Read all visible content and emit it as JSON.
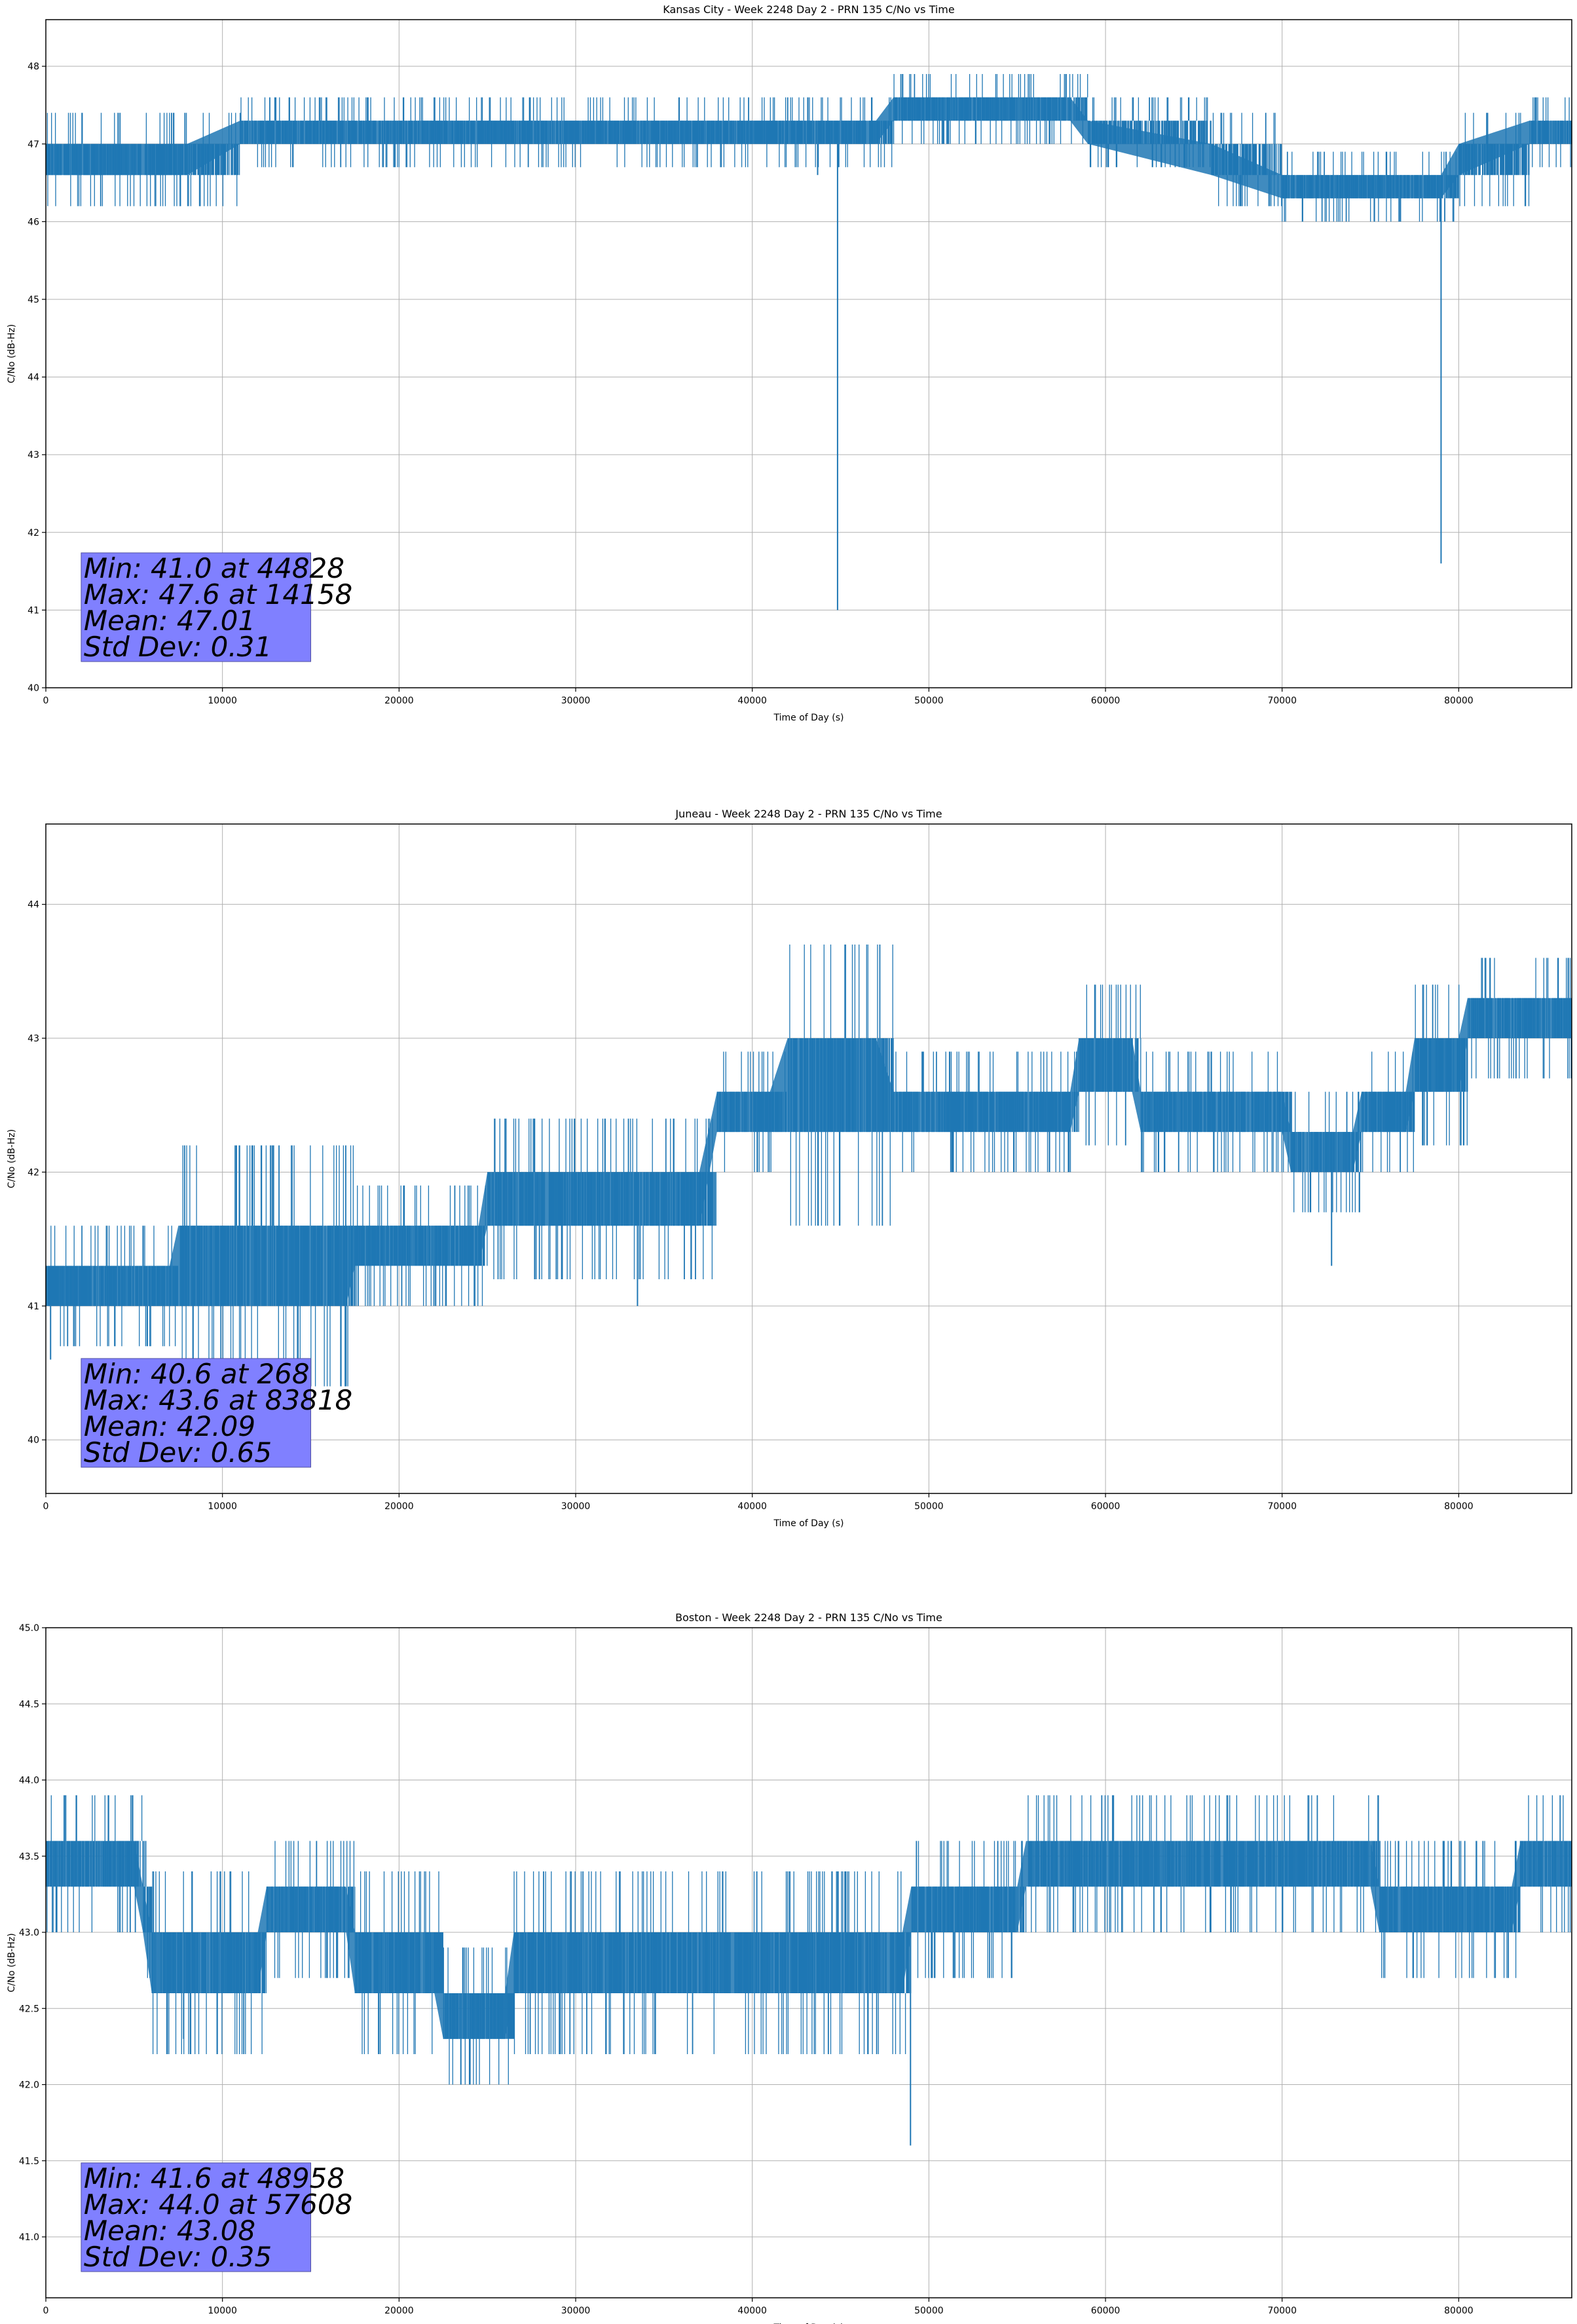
{
  "figure": {
    "background": "#ffffff",
    "line_color": "#1f77b4",
    "stats_box_color": "#8080ff"
  },
  "chart_data": [
    {
      "type": "line",
      "title": "Kansas City - Week 2248 Day 2 - PRN 135 C/No vs Time",
      "xlabel": "Time of Day (s)",
      "ylabel": "C/No (dB-Hz)",
      "xlim": [
        0,
        86400
      ],
      "ylim": [
        40,
        48.6
      ],
      "xticks": [
        0,
        10000,
        20000,
        30000,
        40000,
        50000,
        60000,
        70000,
        80000
      ],
      "yticks": [
        40,
        41,
        42,
        43,
        44,
        45,
        46,
        47,
        48
      ],
      "grid": true,
      "series": [
        {
          "values_description_free": true,
          "band": [
            {
              "x": 0,
              "low": 46.6,
              "high": 47.0
            },
            {
              "x": 8000,
              "low": 46.6,
              "high": 47.0
            },
            {
              "x": 11000,
              "low": 47.0,
              "high": 47.3
            },
            {
              "x": 47000,
              "low": 47.0,
              "high": 47.3
            },
            {
              "x": 48000,
              "low": 47.3,
              "high": 47.6
            },
            {
              "x": 58000,
              "low": 47.3,
              "high": 47.6
            },
            {
              "x": 59000,
              "low": 47.0,
              "high": 47.3
            },
            {
              "x": 66000,
              "low": 46.6,
              "high": 47.0
            },
            {
              "x": 70000,
              "low": 46.3,
              "high": 46.6
            },
            {
              "x": 79000,
              "low": 46.3,
              "high": 46.6
            },
            {
              "x": 80000,
              "low": 46.6,
              "high": 47.0
            },
            {
              "x": 84000,
              "low": 47.0,
              "high": 47.3
            },
            {
              "x": 86400,
              "low": 47.0,
              "high": 47.3
            }
          ],
          "spikes": [
            {
              "x": 44828,
              "y": 41.0
            },
            {
              "x": 79000,
              "y": 41.6
            },
            {
              "x": 43700,
              "y": 46.6
            }
          ]
        }
      ],
      "stats": [
        "Min: 41.0 at 44828",
        "Max: 47.6 at 14158",
        "Mean: 47.01",
        "Std Dev: 0.31"
      ]
    },
    {
      "type": "line",
      "title": "Juneau - Week 2248 Day 2 - PRN 135 C/No vs Time",
      "xlabel": "Time of Day (s)",
      "ylabel": "C/No (dB-Hz)",
      "xlim": [
        0,
        86400
      ],
      "ylim": [
        39.6,
        44.6
      ],
      "xticks": [
        0,
        10000,
        20000,
        30000,
        40000,
        50000,
        60000,
        70000,
        80000
      ],
      "yticks": [
        40,
        41,
        42,
        43,
        44
      ],
      "grid": true,
      "series": [
        {
          "band": [
            {
              "x": 0,
              "low": 41.0,
              "high": 41.3
            },
            {
              "x": 7000,
              "low": 41.0,
              "high": 41.3
            },
            {
              "x": 7500,
              "low": 41.0,
              "high": 41.6
            },
            {
              "x": 17000,
              "low": 41.0,
              "high": 41.6
            },
            {
              "x": 17500,
              "low": 41.3,
              "high": 41.6
            },
            {
              "x": 24500,
              "low": 41.3,
              "high": 41.6
            },
            {
              "x": 25000,
              "low": 41.6,
              "high": 42.0
            },
            {
              "x": 37000,
              "low": 41.6,
              "high": 42.0
            },
            {
              "x": 38000,
              "low": 42.3,
              "high": 42.6
            },
            {
              "x": 41000,
              "low": 42.3,
              "high": 42.6
            },
            {
              "x": 42000,
              "low": 42.3,
              "high": 43.0
            },
            {
              "x": 47000,
              "low": 42.3,
              "high": 43.0
            },
            {
              "x": 48000,
              "low": 42.3,
              "high": 42.6
            },
            {
              "x": 58000,
              "low": 42.3,
              "high": 42.6
            },
            {
              "x": 58500,
              "low": 42.6,
              "high": 43.0
            },
            {
              "x": 61500,
              "low": 42.6,
              "high": 43.0
            },
            {
              "x": 62000,
              "low": 42.3,
              "high": 42.6
            },
            {
              "x": 70000,
              "low": 42.3,
              "high": 42.6
            },
            {
              "x": 70500,
              "low": 42.0,
              "high": 42.3
            },
            {
              "x": 74000,
              "low": 42.0,
              "high": 42.3
            },
            {
              "x": 74500,
              "low": 42.3,
              "high": 42.6
            },
            {
              "x": 77000,
              "low": 42.3,
              "high": 42.6
            },
            {
              "x": 77500,
              "low": 42.6,
              "high": 43.0
            },
            {
              "x": 80000,
              "low": 42.6,
              "high": 43.0
            },
            {
              "x": 80500,
              "low": 43.0,
              "high": 43.3
            },
            {
              "x": 86400,
              "low": 43.0,
              "high": 43.3
            }
          ],
          "spikes": [
            {
              "x": 268,
              "y": 40.6
            },
            {
              "x": 72800,
              "y": 41.3
            },
            {
              "x": 33500,
              "y": 41.0
            }
          ]
        }
      ],
      "stats": [
        "Min: 40.6 at 268",
        "Max: 43.6 at 83818",
        "Mean: 42.09",
        "Std Dev: 0.65"
      ]
    },
    {
      "type": "line",
      "title": "Boston - Week 2248 Day 2 - PRN 135 C/No vs Time",
      "xlabel": "Time of Day (s)",
      "ylabel": "C/No (dB-Hz)",
      "xlim": [
        0,
        86400
      ],
      "ylim": [
        40.6,
        45.0
      ],
      "xticks": [
        0,
        10000,
        20000,
        30000,
        40000,
        50000,
        60000,
        70000,
        80000
      ],
      "yticks": [
        41.0,
        41.5,
        42.0,
        42.5,
        43.0,
        43.5,
        44.0,
        44.5,
        45.0
      ],
      "grid": true,
      "series": [
        {
          "band": [
            {
              "x": 0,
              "low": 43.3,
              "high": 43.6
            },
            {
              "x": 5000,
              "low": 43.3,
              "high": 43.6
            },
            {
              "x": 5500,
              "low": 43.0,
              "high": 43.3
            },
            {
              "x": 6000,
              "low": 42.6,
              "high": 43.0
            },
            {
              "x": 12000,
              "low": 42.6,
              "high": 43.0
            },
            {
              "x": 12500,
              "low": 43.0,
              "high": 43.3
            },
            {
              "x": 17000,
              "low": 43.0,
              "high": 43.3
            },
            {
              "x": 17500,
              "low": 42.6,
              "high": 43.0
            },
            {
              "x": 22000,
              "low": 42.6,
              "high": 43.0
            },
            {
              "x": 22500,
              "low": 42.3,
              "high": 42.6
            },
            {
              "x": 26000,
              "low": 42.3,
              "high": 42.6
            },
            {
              "x": 26500,
              "low": 42.6,
              "high": 43.0
            },
            {
              "x": 48500,
              "low": 42.6,
              "high": 43.0
            },
            {
              "x": 49000,
              "low": 43.0,
              "high": 43.3
            },
            {
              "x": 55000,
              "low": 43.0,
              "high": 43.3
            },
            {
              "x": 55500,
              "low": 43.3,
              "high": 43.6
            },
            {
              "x": 75000,
              "low": 43.3,
              "high": 43.6
            },
            {
              "x": 75500,
              "low": 43.0,
              "high": 43.3
            },
            {
              "x": 83000,
              "low": 43.0,
              "high": 43.3
            },
            {
              "x": 83500,
              "low": 43.3,
              "high": 43.6
            },
            {
              "x": 86400,
              "low": 43.3,
              "high": 43.6
            }
          ],
          "spikes": [
            {
              "x": 48958,
              "y": 41.6
            },
            {
              "x": 23500,
              "y": 42.0
            },
            {
              "x": 7800,
              "y": 42.3
            }
          ]
        }
      ],
      "stats": [
        "Min: 41.6 at 48958",
        "Max: 44.0 at 57608",
        "Mean: 43.08",
        "Std Dev: 0.35"
      ]
    }
  ]
}
